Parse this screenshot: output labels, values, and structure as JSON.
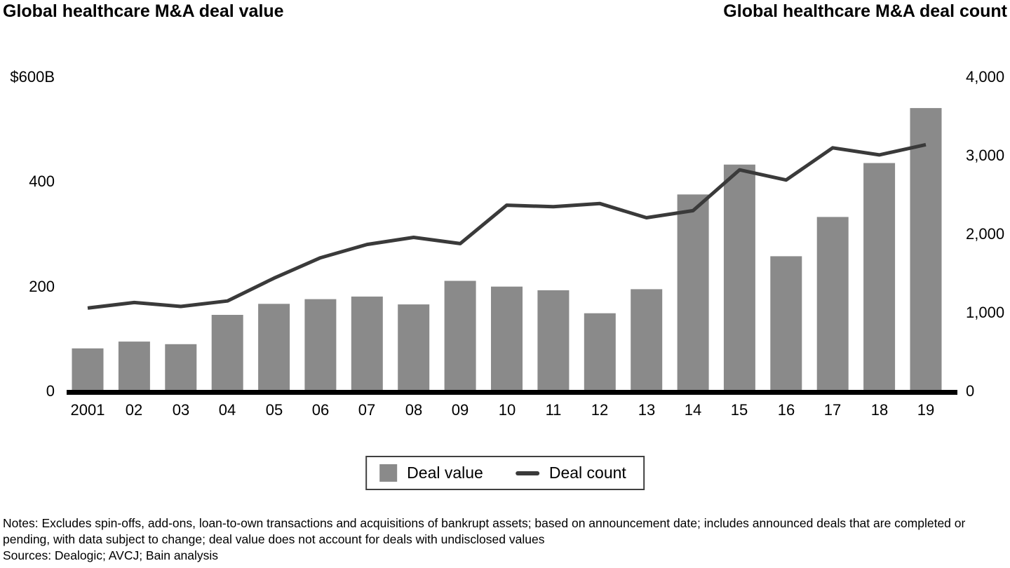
{
  "titles": {
    "left": "Global healthcare M&A deal value",
    "right": "Global healthcare M&A deal count"
  },
  "left_axis": {
    "labels": [
      "$600B",
      "400",
      "200",
      "0"
    ],
    "values": [
      600,
      400,
      200,
      0
    ],
    "max": 600
  },
  "right_axis": {
    "labels": [
      "4,000",
      "3,000",
      "2,000",
      "1,000",
      "0"
    ],
    "values": [
      4000,
      3000,
      2000,
      1000,
      0
    ],
    "max": 4000
  },
  "chart_data": {
    "type": "bar",
    "title": "Global healthcare M&A deal value and deal count, 2001-2019",
    "categories": [
      "2001",
      "02",
      "03",
      "04",
      "05",
      "06",
      "07",
      "08",
      "09",
      "10",
      "11",
      "12",
      "13",
      "14",
      "15",
      "16",
      "17",
      "18",
      "19"
    ],
    "series": [
      {
        "name": "Deal value",
        "type": "bar",
        "axis": "left",
        "unit": "$B",
        "color": "#8a8a8a",
        "values": [
          82,
          95,
          90,
          146,
          167,
          176,
          181,
          166,
          211,
          200,
          193,
          149,
          195,
          376,
          433,
          258,
          333,
          436,
          541
        ]
      },
      {
        "name": "Deal count",
        "type": "line",
        "axis": "right",
        "unit": "deals",
        "color": "#3a3a3a",
        "values": [
          1060,
          1130,
          1080,
          1150,
          1440,
          1700,
          1870,
          1960,
          1880,
          2370,
          2350,
          2390,
          2210,
          2300,
          2820,
          2690,
          3100,
          3010,
          3140
        ]
      }
    ],
    "ylim_left": [
      0,
      600
    ],
    "ylim_right": [
      0,
      4000
    ],
    "grid": false,
    "legend_position": "bottom-center"
  },
  "legend": {
    "items": [
      {
        "label": "Deal value",
        "swatch": "bar",
        "color": "#8a8a8a"
      },
      {
        "label": "Deal count",
        "swatch": "line",
        "color": "#3a3a3a"
      }
    ]
  },
  "colors": {
    "bar": "#8a8a8a",
    "line": "#3a3a3a",
    "axis_baseline": "#000000",
    "text": "#000000"
  },
  "footnotes": {
    "notes": "Notes: Excludes spin-offs, add-ons, loan-to-own transactions and acquisitions of bankrupt assets; based on announcement date; includes announced deals that are completed or pending, with data subject to change; deal value does not account for deals with undisclosed values",
    "sources": "Sources: Dealogic; AVCJ; Bain analysis"
  }
}
